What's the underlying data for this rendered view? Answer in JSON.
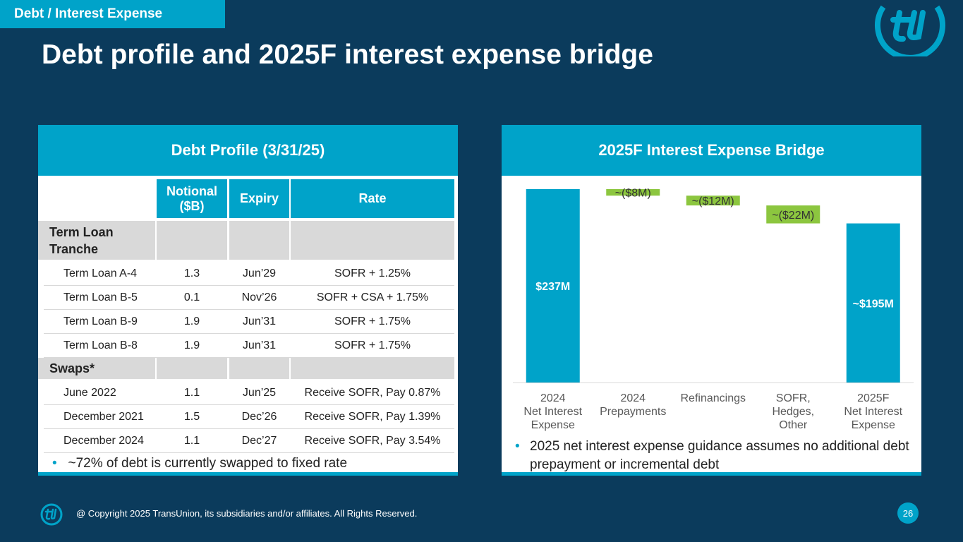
{
  "header": {
    "section": "Debt / Interest Expense",
    "title": "Debt profile and 2025F interest expense bridge"
  },
  "table": {
    "title": "Debt Profile (3/31/25)",
    "columns": [
      "Notional\n($B)",
      "Expiry",
      "Rate"
    ],
    "groups": [
      {
        "name": "Term Loan\nTranche",
        "rows": [
          [
            "Term Loan A-4",
            "1.3",
            "Jun’29",
            "SOFR + 1.25%"
          ],
          [
            "Term Loan B-5",
            "0.1",
            "Nov’26",
            "SOFR + CSA + 1.75%"
          ],
          [
            "Term Loan B-9",
            "1.9",
            "Jun’31",
            "SOFR + 1.75%"
          ],
          [
            "Term Loan B-8",
            "1.9",
            "Jun’31",
            "SOFR + 1.75%"
          ]
        ]
      },
      {
        "name": "Swaps*",
        "rows": [
          [
            "June 2022",
            "1.1",
            "Jun’25",
            "Receive SOFR, Pay 0.87%"
          ],
          [
            "December 2021",
            "1.5",
            "Dec’26",
            "Receive SOFR, Pay 1.39%"
          ],
          [
            "December 2024",
            "1.1",
            "Dec’27",
            "Receive SOFR, Pay 3.54%"
          ]
        ]
      }
    ],
    "note": "~72% of debt is currently swapped to fixed rate"
  },
  "chart_data": {
    "type": "waterfall",
    "title": "2025F Interest Expense Bridge",
    "categories": [
      "2024\nNet Interest\nExpense",
      "2024\nPrepayments",
      "Refinancings",
      "SOFR,\nHedges,\nOther",
      "2025F\nNet Interest\nExpense"
    ],
    "values": [
      237,
      -8,
      -12,
      -22,
      195
    ],
    "value_labels": [
      "$237M",
      "~($8M)",
      "~($12M)",
      "~($22M)",
      "~$195M"
    ],
    "measure": [
      "absolute",
      "relative",
      "relative",
      "relative",
      "absolute"
    ],
    "colors": [
      "#00a3c9",
      "#8cc63f",
      "#8cc63f",
      "#8cc63f",
      "#00a3c9"
    ],
    "note": "2025 net interest expense guidance assumes no additional debt prepayment or incremental debt"
  },
  "footer": {
    "copyright": "@ Copyright 2025 TransUnion, its subsidiaries and/or affiliates.  All Rights Reserved.",
    "page": "26"
  }
}
